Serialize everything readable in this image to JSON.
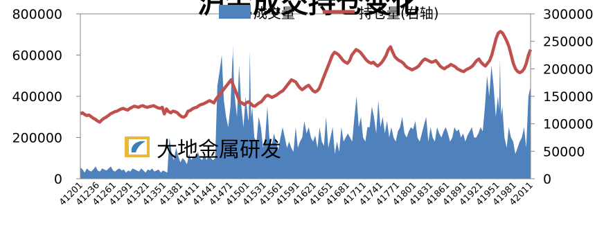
{
  "chart_data": {
    "type": "area",
    "title": "沪金成交持仓变化",
    "watermark": "大地金属研发",
    "legend_position": "top",
    "grid": false,
    "x_tick_labels": [
      "41201",
      "41236",
      "41261",
      "41291",
      "41321",
      "41351",
      "41381",
      "41411",
      "41441",
      "41471",
      "41501",
      "41531",
      "41561",
      "41591",
      "41621",
      "41651",
      "41681",
      "41711",
      "41741",
      "41771",
      "41801",
      "41831",
      "41861",
      "41891",
      "41921",
      "41951",
      "41981",
      "42011"
    ],
    "y_left": {
      "ticks": [
        "0",
        "200000",
        "400000",
        "600000",
        "800000"
      ],
      "ylim": [
        0,
        800000
      ]
    },
    "y_right": {
      "ticks": [
        "0",
        "50000",
        "100000",
        "150000",
        "200000",
        "250000",
        "300000"
      ],
      "ylim": [
        0,
        300000
      ]
    },
    "series": [
      {
        "name": "成交量",
        "type": "area",
        "axis": "left",
        "color": "#4f81bd",
        "values": [
          55000,
          45000,
          30000,
          50000,
          40000,
          35000,
          45000,
          60000,
          40000,
          35000,
          50000,
          45000,
          40000,
          50000,
          60000,
          40000,
          35000,
          45000,
          50000,
          40000,
          45000,
          30000,
          40000,
          35000,
          50000,
          45000,
          40000,
          35000,
          50000,
          40000,
          30000,
          45000,
          40000,
          50000,
          35000,
          40000,
          45000,
          30000,
          40000,
          35000,
          30000,
          200000,
          120000,
          90000,
          150000,
          110000,
          80000,
          100000,
          90000,
          70000,
          120000,
          90000,
          110000,
          100000,
          130000,
          100000,
          90000,
          120000,
          90000,
          110000,
          100000,
          90000,
          100000,
          450000,
          520000,
          600000,
          380000,
          300000,
          250000,
          350000,
          600000,
          400000,
          300000,
          550000,
          350000,
          250000,
          400000,
          300000,
          250000,
          350000,
          200000,
          180000,
          300000,
          250000,
          150000,
          200000,
          350000,
          180000,
          160000,
          220000,
          180000,
          140000,
          200000,
          250000,
          200000,
          150000,
          180000,
          150000,
          130000,
          250000,
          150000,
          180000,
          200000,
          280000,
          220000,
          250000,
          200000,
          180000,
          210000,
          150000,
          250000,
          180000,
          160000,
          300000,
          150000,
          200000,
          250000,
          120000,
          180000,
          130000,
          250000,
          180000,
          200000,
          220000,
          200000,
          180000,
          300000,
          400000,
          250000,
          300000,
          200000,
          180000,
          250000,
          250000,
          350000,
          300000,
          220000,
          380000,
          250000,
          300000,
          220000,
          280000,
          200000,
          250000,
          200000,
          180000,
          230000,
          250000,
          300000,
          220000,
          200000,
          230000,
          250000,
          240000,
          280000,
          200000,
          180000,
          220000,
          260000,
          300000,
          180000,
          250000,
          200000,
          180000,
          250000,
          220000,
          200000,
          230000,
          250000,
          220000,
          180000,
          200000,
          250000,
          230000,
          240000,
          200000,
          220000,
          180000,
          210000,
          230000,
          250000,
          200000,
          200000,
          220000,
          250000,
          230000,
          350000,
          500000,
          400000,
          550000,
          450000,
          300000,
          400000,
          280000,
          350000,
          200000,
          150000,
          250000,
          200000,
          180000,
          120000,
          150000,
          180000,
          200000,
          250000,
          150000,
          400000,
          450000
        ],
        "peaks": {
          "41471": 650000,
          "41501": 620000,
          "41951": 580000
        }
      },
      {
        "name": "持仓量(右轴)",
        "type": "line",
        "axis": "right",
        "color": "#c0504d",
        "values": [
          118000,
          120000,
          117000,
          115000,
          116000,
          113000,
          110000,
          108000,
          105000,
          103000,
          107000,
          110000,
          112000,
          115000,
          118000,
          120000,
          122000,
          123000,
          125000,
          127000,
          128000,
          126000,
          125000,
          128000,
          130000,
          132000,
          131000,
          130000,
          132000,
          133000,
          131000,
          130000,
          131000,
          132000,
          133000,
          131000,
          129000,
          128000,
          130000,
          118000,
          127000,
          122000,
          120000,
          123000,
          122000,
          120000,
          116000,
          113000,
          112000,
          115000,
          123000,
          124000,
          127000,
          129000,
          130000,
          133000,
          135000,
          136000,
          138000,
          140000,
          142000,
          140000,
          138000,
          145000,
          150000,
          155000,
          160000,
          165000,
          170000,
          175000,
          180000,
          170000,
          160000,
          150000,
          140000,
          138000,
          135000,
          138000,
          140000,
          137000,
          133000,
          132000,
          135000,
          138000,
          140000,
          145000,
          150000,
          152000,
          150000,
          148000,
          150000,
          152000,
          155000,
          158000,
          160000,
          165000,
          170000,
          175000,
          180000,
          178000,
          176000,
          170000,
          165000,
          162000,
          165000,
          168000,
          170000,
          165000,
          160000,
          158000,
          160000,
          165000,
          175000,
          185000,
          195000,
          205000,
          215000,
          225000,
          230000,
          228000,
          225000,
          220000,
          215000,
          212000,
          210000,
          215000,
          225000,
          230000,
          235000,
          233000,
          230000,
          225000,
          220000,
          215000,
          212000,
          210000,
          212000,
          208000,
          205000,
          208000,
          212000,
          218000,
          225000,
          235000,
          240000,
          230000,
          222000,
          218000,
          215000,
          213000,
          210000,
          205000,
          202000,
          200000,
          198000,
          200000,
          202000,
          205000,
          210000,
          215000,
          218000,
          216000,
          214000,
          212000,
          213000,
          215000,
          210000,
          205000,
          202000,
          200000,
          203000,
          205000,
          208000,
          206000,
          204000,
          200000,
          198000,
          196000,
          195000,
          198000,
          200000,
          202000,
          205000,
          210000,
          215000,
          218000,
          212000,
          208000,
          205000,
          210000,
          215000,
          225000,
          240000,
          255000,
          265000,
          268000,
          265000,
          258000,
          250000,
          240000,
          225000,
          210000,
          200000,
          195000,
          193000,
          195000,
          200000,
          210000,
          225000,
          235000
        ]
      }
    ]
  }
}
